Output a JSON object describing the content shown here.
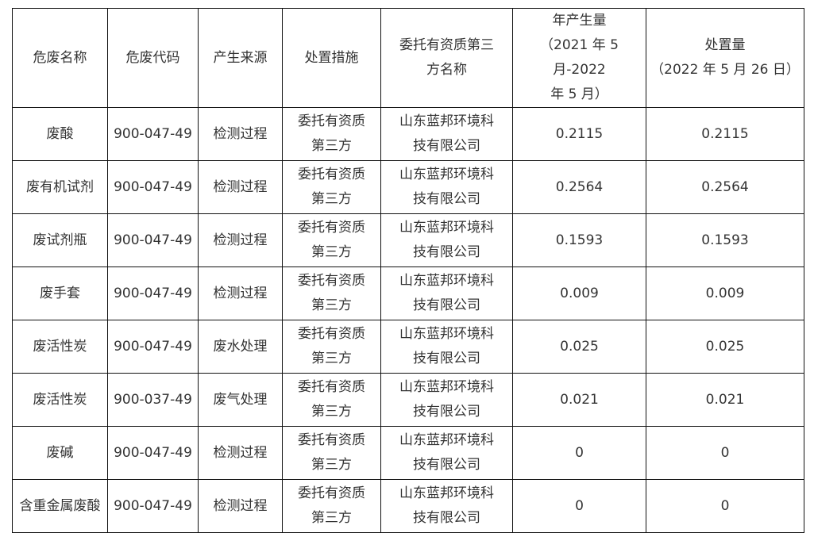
{
  "headers": [
    "危废名称",
    "危废代码",
    "产生来源",
    "处置措施",
    "委托有资质第三方名称",
    "年产生量（2021 年 5 月-2022 年 5 月）",
    "处置量（2022 年 5 月 26 日）"
  ],
  "header_lines": {
    "h4": [
      "委托有资质第三",
      "方名称"
    ],
    "h5": [
      "年产生量",
      "（2021 年 5 月-2022",
      "年 5 月）"
    ],
    "h6": [
      "处置量",
      "（2022 年 5 月 26 日）"
    ]
  },
  "rows": [
    {
      "name": "废酸",
      "code": "900-047-49",
      "source": "检测过程",
      "measure": [
        "委托有资质",
        "第三方"
      ],
      "company": [
        "山东蓝邦环境科",
        "技有限公司"
      ],
      "annual": "0.2115",
      "disposed": "0.2115"
    },
    {
      "name": "废有机试剂",
      "code": "900-047-49",
      "source": "检测过程",
      "measure": [
        "委托有资质",
        "第三方"
      ],
      "company": [
        "山东蓝邦环境科",
        "技有限公司"
      ],
      "annual": "0.2564",
      "disposed": "0.2564"
    },
    {
      "name": "废试剂瓶",
      "code": "900-047-49",
      "source": "检测过程",
      "measure": [
        "委托有资质",
        "第三方"
      ],
      "company": [
        "山东蓝邦环境科",
        "技有限公司"
      ],
      "annual": "0.1593",
      "disposed": "0.1593"
    },
    {
      "name": "废手套",
      "code": "900-047-49",
      "source": "检测过程",
      "measure": [
        "委托有资质",
        "第三方"
      ],
      "company": [
        "山东蓝邦环境科",
        "技有限公司"
      ],
      "annual": "0.009",
      "disposed": "0.009"
    },
    {
      "name": "废活性炭",
      "code": "900-047-49",
      "source": "废水处理",
      "measure": [
        "委托有资质",
        "第三方"
      ],
      "company": [
        "山东蓝邦环境科",
        "技有限公司"
      ],
      "annual": "0.025",
      "disposed": "0.025"
    },
    {
      "name": "废活性炭",
      "code": "900-037-49",
      "source": "废气处理",
      "measure": [
        "委托有资质",
        "第三方"
      ],
      "company": [
        "山东蓝邦环境科",
        "技有限公司"
      ],
      "annual": "0.021",
      "disposed": "0.021"
    },
    {
      "name": "废碱",
      "code": "900-047-49",
      "source": "检测过程",
      "measure": [
        "委托有资质",
        "第三方"
      ],
      "company": [
        "山东蓝邦环境科",
        "技有限公司"
      ],
      "annual": "0",
      "disposed": "0"
    },
    {
      "name": "含重金属废酸",
      "code": "900-047-49",
      "source": "检测过程",
      "measure": [
        "委托有资质",
        "第三方"
      ],
      "company": [
        "山东蓝邦环境科",
        "技有限公司"
      ],
      "annual": "0",
      "disposed": "0"
    }
  ]
}
